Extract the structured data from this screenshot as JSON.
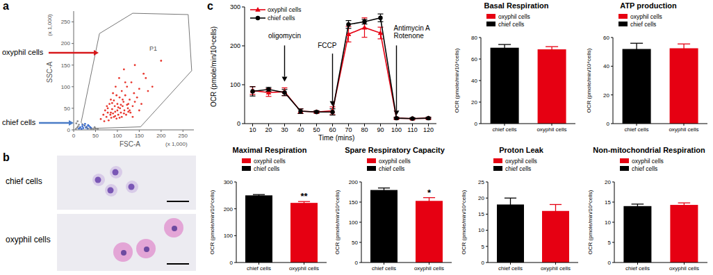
{
  "chart_data": [
    {
      "panel": "a",
      "type": "scatter",
      "x_label": "FSC-A",
      "y_label": "SSC-A",
      "x_multiplier": "(x 1,000)",
      "y_multiplier": "(x 1,000)",
      "xlim": [
        0,
        275
      ],
      "ylim": [
        0,
        275
      ],
      "xticks": [
        0,
        50,
        100,
        150,
        200,
        250
      ],
      "yticks": [
        0,
        50,
        100,
        150,
        200,
        250
      ],
      "series": [
        {
          "color": "#8c8c8c",
          "x": [
            5,
            8,
            10,
            12,
            14,
            40,
            45,
            50,
            55,
            48,
            6,
            9
          ],
          "y": [
            2,
            5,
            8,
            12,
            4,
            2,
            1,
            3,
            2,
            6,
            15,
            20
          ]
        },
        {
          "color": "#e8382f",
          "x": [
            62,
            68,
            70,
            72,
            75,
            76,
            78,
            80,
            82,
            84,
            85,
            86,
            88,
            90,
            90,
            92,
            94,
            95,
            96,
            98,
            100,
            100,
            102,
            104,
            105,
            106,
            108,
            110,
            110,
            112,
            114,
            115,
            116,
            118,
            120,
            122,
            124,
            125,
            128,
            130,
            132,
            135,
            138,
            140,
            145,
            150,
            155,
            160,
            170,
            78,
            88,
            98,
            108,
            118,
            128,
            95,
            105,
            115,
            125,
            135,
            92,
            102,
            112,
            122,
            85,
            140,
            150,
            165,
            180,
            200
          ],
          "y": [
            25,
            35,
            20,
            45,
            30,
            55,
            40,
            22,
            60,
            35,
            70,
            28,
            48,
            38,
            85,
            30,
            55,
            42,
            100,
            26,
            60,
            45,
            35,
            120,
            75,
            50,
            40,
            90,
            30,
            55,
            65,
            140,
            45,
            80,
            35,
            100,
            50,
            60,
            70,
            40,
            110,
            55,
            85,
            65,
            75,
            95,
            60,
            130,
            90,
            50,
            62,
            80,
            58,
            110,
            45,
            32,
            28,
            38,
            42,
            30,
            68,
            52,
            70,
            58,
            40,
            150,
            45,
            120,
            100,
            160
          ]
        },
        {
          "color": "#3d6fd1",
          "x": [
            12,
            15,
            18,
            20,
            22,
            25,
            28,
            30,
            32,
            35,
            38,
            40,
            20,
            26,
            33
          ],
          "y": [
            3,
            6,
            2,
            8,
            4,
            10,
            5,
            7,
            3,
            9,
            6,
            4,
            12,
            14,
            11
          ]
        }
      ],
      "gate": {
        "label": "P1",
        "x": [
          17,
          59,
          135,
          262,
          270,
          153,
          32,
          17
        ],
        "y": [
          17,
          223,
          270,
          267,
          137,
          7,
          3,
          17
        ]
      },
      "annotations": [
        {
          "text": "oxyphil cells",
          "color": "#d7191c"
        },
        {
          "text": "chief cells",
          "color": "#4a7cc7"
        }
      ]
    },
    {
      "panel": "b",
      "type": "image",
      "labels": [
        "chief cells",
        "oxyphil cells"
      ]
    },
    {
      "panel": "c",
      "type": "line",
      "x_label": "Time (mins)",
      "y_label": "OCR (pmole/min/10⁴cells)",
      "xlim": [
        5,
        125
      ],
      "xticks": [
        10,
        20,
        30,
        40,
        50,
        60,
        70,
        80,
        90,
        100,
        110,
        120
      ],
      "ylim": [
        0,
        300
      ],
      "yticks": [
        0,
        100,
        200,
        300
      ],
      "legend": "upper left",
      "x": [
        10,
        20,
        30,
        40,
        50,
        60,
        70,
        80,
        90,
        100,
        110,
        120
      ],
      "series": [
        {
          "name": "oxyphil cells",
          "color": "#e60012",
          "marker": "triangle",
          "values": [
            85,
            80,
            82,
            32,
            30,
            33,
            230,
            247,
            233,
            14,
            13,
            14
          ],
          "errors": [
            10,
            10,
            10,
            6,
            3,
            10,
            20,
            25,
            15,
            2,
            2,
            2
          ]
        },
        {
          "name": "chief cells",
          "color": "#000000",
          "marker": "circle",
          "values": [
            83,
            88,
            80,
            32,
            30,
            30,
            255,
            262,
            272,
            14,
            13,
            14
          ],
          "errors": [
            12,
            5,
            8,
            6,
            3,
            8,
            10,
            6,
            10,
            2,
            2,
            2
          ]
        }
      ],
      "annotations": [
        {
          "text": [
            "oligomycin"
          ],
          "x": 30
        },
        {
          "text": [
            "FCCP"
          ],
          "x": 60
        },
        {
          "text": [
            "Antimycin A",
            "Rotenone"
          ],
          "x": 100
        }
      ]
    },
    {
      "type": "bar",
      "title": "Basal Respiration",
      "y_label": "OCR (pmole/min/10⁴cells)",
      "categories": [
        "chief cells",
        "oxyphil cells"
      ],
      "ylim": [
        0,
        80
      ],
      "yticks": [
        0,
        20,
        40,
        60,
        80
      ],
      "legend": "top",
      "series": [
        {
          "name": "oxyphil cells",
          "color": "#e60012",
          "values": [
            null,
            69
          ],
          "errors": [
            null,
            2.5
          ]
        },
        {
          "name": "chief cells",
          "color": "#000000",
          "values": [
            70.5,
            null
          ],
          "errors": [
            3,
            null
          ]
        }
      ]
    },
    {
      "type": "bar",
      "title": "ATP production",
      "y_label": "OCR (pmole/min/10⁴cells)",
      "categories": [
        "chief cells",
        "oxyphil cells"
      ],
      "ylim": [
        0,
        60
      ],
      "yticks": [
        0,
        20,
        40,
        60
      ],
      "legend": "top",
      "series": [
        {
          "name": "oxyphil cells",
          "color": "#e60012",
          "values": [
            null,
            52.5
          ],
          "errors": [
            null,
            3
          ]
        },
        {
          "name": "chief cells",
          "color": "#000000",
          "values": [
            52,
            null
          ],
          "errors": [
            4,
            null
          ]
        }
      ]
    },
    {
      "type": "bar",
      "title": "Maximal Respiration",
      "y_label": "OCR (pmole/min/10⁴cells)",
      "categories": [
        "chief cells",
        "oxyphil cells"
      ],
      "ylim": [
        0,
        300
      ],
      "yticks": [
        0,
        100,
        200,
        300
      ],
      "legend": "top",
      "series": [
        {
          "name": "oxyphil cells",
          "color": "#e60012",
          "values": [
            null,
            222
          ],
          "errors": [
            null,
            5
          ]
        },
        {
          "name": "chief cells",
          "color": "#000000",
          "values": [
            250,
            null
          ],
          "errors": [
            3,
            null
          ]
        }
      ],
      "annotations": [
        {
          "text": "**",
          "category": "oxyphil cells"
        }
      ]
    },
    {
      "type": "bar",
      "title": "Spare Respiratory Capacity",
      "y_label": "OCR (pmole/min/10⁴cells)",
      "categories": [
        "chief cells",
        "oxyphil cells"
      ],
      "ylim": [
        0,
        200
      ],
      "yticks": [
        0,
        50,
        100,
        150,
        200
      ],
      "legend": "top",
      "series": [
        {
          "name": "oxyphil cells",
          "color": "#e60012",
          "values": [
            null,
            153
          ],
          "errors": [
            null,
            8
          ]
        },
        {
          "name": "chief cells",
          "color": "#000000",
          "values": [
            180,
            null
          ],
          "errors": [
            5,
            null
          ]
        }
      ],
      "annotations": [
        {
          "text": "*",
          "category": "oxyphil cells"
        }
      ]
    },
    {
      "type": "bar",
      "title": "Proton Leak",
      "y_label": "OCR (pmole/min/10⁴cells)",
      "categories": [
        "chief cells",
        "oxyphil cells"
      ],
      "ylim": [
        0,
        25
      ],
      "yticks": [
        0,
        5,
        10,
        15,
        20,
        25
      ],
      "legend": "top",
      "series": [
        {
          "name": "oxyphil cells",
          "color": "#e60012",
          "values": [
            null,
            16
          ],
          "errors": [
            null,
            2
          ]
        },
        {
          "name": "chief cells",
          "color": "#000000",
          "values": [
            18,
            null
          ],
          "errors": [
            2,
            null
          ]
        }
      ]
    },
    {
      "type": "bar",
      "title": "Non-mitochondrial Respiration",
      "y_label": "OCR (pmole/min/10⁴cells)",
      "categories": [
        "chief cells",
        "oxyphil cells"
      ],
      "ylim": [
        0,
        20
      ],
      "yticks": [
        0,
        5,
        10,
        15,
        20
      ],
      "legend": "top",
      "series": [
        {
          "name": "oxyphil cells",
          "color": "#e60012",
          "values": [
            null,
            14.3
          ],
          "errors": [
            null,
            0.5
          ]
        },
        {
          "name": "chief cells",
          "color": "#000000",
          "values": [
            14,
            null
          ],
          "errors": [
            0.5,
            null
          ]
        }
      ]
    }
  ]
}
